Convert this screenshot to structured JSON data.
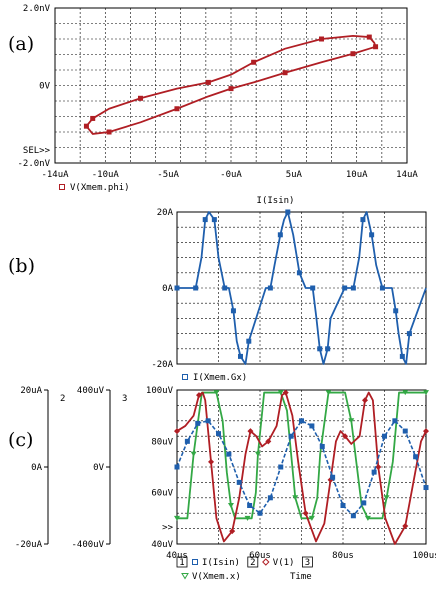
{
  "colors": {
    "red": "#b01e24",
    "blue": "#1f5fad",
    "green": "#33a845",
    "grid": "#000000"
  },
  "chart_data": [
    {
      "type": "line",
      "panel_label": "(a)",
      "sel_label": "SEL>>",
      "xlim": [
        -14,
        14
      ],
      "ylim": [
        -2,
        2
      ],
      "x_ticks": [
        "-14uA",
        "-10uA",
        "-5uA",
        "-0uA",
        "5uA",
        "10uA",
        "14uA"
      ],
      "x_tick_values": [
        -14,
        -10,
        -5,
        0,
        5,
        10,
        14
      ],
      "y_ticks": [
        "2.0nV",
        "0V",
        "-2.0nV"
      ],
      "y_tick_values": [
        2,
        0,
        -2
      ],
      "legend": [
        {
          "marker": "square",
          "color": "red",
          "label": "V(Xmem.phi)"
        }
      ],
      "series": [
        {
          "name": "V(Xmem.phi)",
          "color": "red",
          "x": [
            -11.5,
            -11.0,
            -9.7,
            -7.2,
            -4.3,
            -1.8,
            0.0,
            1.8,
            4.3,
            7.2,
            9.7,
            11.0,
            11.5,
            11.4,
            11.0,
            9.7,
            7.2,
            4.3,
            1.8,
            0.0,
            -1.8,
            -4.3,
            -7.2,
            -9.7,
            -11.0,
            -11.5
          ],
          "y": [
            -1.05,
            -1.25,
            -1.2,
            -0.95,
            -0.6,
            -0.28,
            -0.08,
            0.08,
            0.33,
            0.6,
            0.82,
            0.95,
            1.0,
            1.1,
            1.25,
            1.28,
            1.2,
            0.95,
            0.6,
            0.28,
            0.08,
            -0.08,
            -0.33,
            -0.6,
            -0.85,
            -1.05
          ]
        }
      ]
    },
    {
      "type": "line",
      "panel_label": "(b)",
      "title": "I(Isin)",
      "xlim": [
        40,
        100
      ],
      "ylim": [
        -20,
        20
      ],
      "y_ticks": [
        "20A",
        "0A",
        "-20A"
      ],
      "y_tick_values": [
        20,
        0,
        -20
      ],
      "legend": [
        {
          "marker": "square",
          "color": "blue",
          "label": "I(Xmem.Gx)"
        }
      ],
      "series": [
        {
          "name": "I(Xmem.Gx)",
          "color": "blue",
          "x": [
            40,
            42.5,
            44.5,
            45.9,
            46.8,
            47.7,
            49,
            50,
            51.5,
            52.5,
            53.6,
            54.4,
            55.3,
            56.5,
            57.3,
            61.4,
            62.5,
            63.5,
            64.9,
            65.8,
            66.7,
            68,
            69.5,
            71,
            72.7,
            73.6,
            74.4,
            75.3,
            76.3,
            77,
            80.4,
            81.5,
            82.5,
            83.9,
            84.8,
            85.7,
            86.9,
            88,
            89.5,
            91.8,
            92.7,
            93.4,
            94.3,
            95.2,
            96,
            100
          ],
          "y": [
            0,
            0,
            0,
            8,
            18,
            20,
            18,
            8,
            0,
            0,
            -6,
            -14,
            -18,
            -20,
            -14,
            0,
            0,
            6,
            14,
            18,
            20,
            14,
            4,
            0,
            0,
            -8,
            -16,
            -20,
            -16,
            -8,
            0,
            0,
            0,
            8,
            18,
            20,
            14,
            6,
            0,
            0,
            -6,
            -12,
            -18,
            -20,
            -12,
            0
          ]
        }
      ]
    },
    {
      "type": "line",
      "panel_label": "(c)",
      "xlim": [
        40,
        100
      ],
      "ylim": [
        40,
        100
      ],
      "x_ticks": [
        "40us",
        "60us",
        "80us",
        "100us"
      ],
      "x_tick_values": [
        40,
        60,
        80,
        100
      ],
      "y_ticks": [
        "100uV",
        "80uV",
        "60uV",
        "40uV"
      ],
      "y_tick_values": [
        100,
        80,
        60,
        40
      ],
      "xlabel": "Time",
      "sel_label": ">>",
      "axis2": {
        "number": "2",
        "ticks": [
          "20uA",
          "0A",
          "-20uA"
        ]
      },
      "axis3": {
        "number": "3",
        "ticks": [
          "400uV",
          "0V",
          "-400uV"
        ]
      },
      "legend_row1": [
        {
          "box": "1",
          "marker": "square",
          "color": "blue",
          "label": "I(Isin)"
        },
        {
          "box": "2",
          "marker": "diamond",
          "color": "red",
          "label": "V(1)"
        },
        {
          "box": "3",
          "marker": "none",
          "color": "",
          "label": ""
        }
      ],
      "legend_row2": [
        {
          "marker": "triangle",
          "color": "green",
          "label": "V(Xmem.x)"
        }
      ],
      "series": [
        {
          "name": "V(Xmem.x)",
          "color": "green",
          "x": [
            40,
            41,
            42.5,
            44,
            46,
            48,
            49.5,
            51,
            52,
            53,
            54,
            55.5,
            57,
            58,
            59,
            59.5,
            61,
            63,
            65,
            66.5,
            67.5,
            68.5,
            70,
            71.5,
            72.5,
            73.8,
            74.5,
            76.5,
            78.5,
            80.5,
            82,
            83.2,
            84.5,
            86,
            88,
            89.5,
            90.5,
            92,
            93.5,
            95,
            96,
            97,
            100
          ],
          "y": [
            50,
            50,
            50,
            75,
            99,
            99,
            99,
            88,
            68,
            55,
            50,
            50,
            50,
            50,
            60,
            75,
            99,
            99,
            99,
            92,
            75,
            58,
            50,
            50,
            50,
            58,
            75,
            99,
            99,
            99,
            88,
            72,
            55,
            50,
            50,
            50,
            58,
            72,
            99,
            99,
            99,
            99,
            99
          ]
        },
        {
          "name": "V(1)",
          "color": "red",
          "x": [
            40,
            42,
            44,
            45.3,
            46.2,
            46.8,
            48.2,
            49.5,
            51.3,
            53.3,
            55,
            56.5,
            57.7,
            59.1,
            60.5,
            62,
            64,
            65.3,
            66.2,
            67.8,
            69.2,
            71,
            73.5,
            75.5,
            77,
            78.3,
            79.4,
            80.5,
            82,
            84,
            85.3,
            86.2,
            87.2,
            88.5,
            90.2,
            92.5,
            95,
            97.3,
            98.8,
            100
          ],
          "y": [
            84,
            86,
            90,
            98,
            99,
            96,
            72,
            50,
            41,
            45,
            58,
            75,
            84,
            82,
            78,
            80,
            86,
            98,
            99,
            90,
            72,
            52,
            41,
            48,
            65,
            80,
            84,
            82,
            79,
            82,
            96,
            99,
            96,
            70,
            50,
            40,
            47,
            67,
            80,
            84
          ]
        },
        {
          "name": "I(Isin)",
          "color": "blue",
          "x": [
            40,
            42.5,
            45,
            47.5,
            50,
            52.5,
            55,
            57.5,
            60,
            62.5,
            65,
            67.5,
            70,
            72.5,
            75,
            77.5,
            80,
            82.5,
            85,
            87.5,
            90,
            92.5,
            95,
            97.5,
            100
          ],
          "y": [
            70,
            80,
            87,
            88,
            83,
            75,
            64,
            55,
            52,
            58,
            70,
            82,
            88,
            86,
            78,
            66,
            55,
            51,
            56,
            68,
            82,
            88,
            84,
            74,
            62
          ]
        }
      ]
    }
  ]
}
